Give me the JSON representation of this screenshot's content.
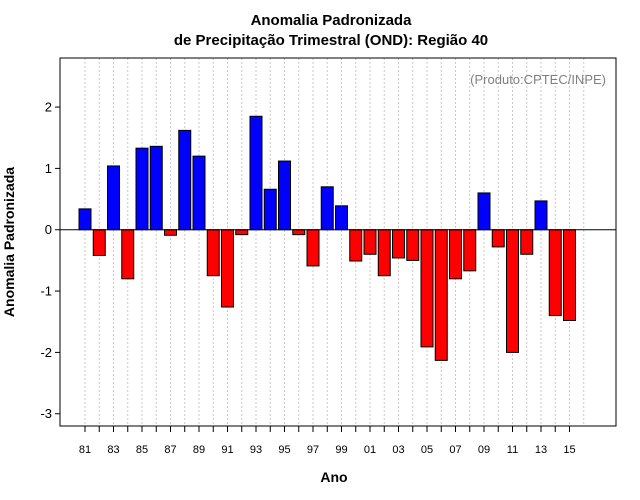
{
  "chart_data": {
    "type": "bar",
    "title": "Anomalia Padronizada",
    "subtitle": "de Precipitação Trimestral (OND): Região 40",
    "xlabel": "Ano",
    "ylabel": "Anomalia Padronizada",
    "credit": "(Produto:CPTEC/INPE)",
    "ylim": [
      -3.2,
      2.8
    ],
    "y_ticks": [
      -3,
      -2,
      -1,
      0,
      1,
      2
    ],
    "years": [
      1981,
      1982,
      1983,
      1984,
      1985,
      1986,
      1987,
      1988,
      1989,
      1990,
      1991,
      1992,
      1993,
      1994,
      1995,
      1996,
      1997,
      1998,
      1999,
      2000,
      2001,
      2002,
      2003,
      2004,
      2005,
      2006,
      2007,
      2008,
      2009,
      2010,
      2011,
      2012,
      2013,
      2014,
      2015
    ],
    "x_tick_labels": [
      "81",
      "83",
      "85",
      "87",
      "89",
      "91",
      "93",
      "95",
      "97",
      "99",
      "01",
      "03",
      "05",
      "07",
      "09",
      "11",
      "13",
      "15"
    ],
    "values": [
      0.34,
      -0.42,
      1.04,
      -0.8,
      1.33,
      1.36,
      -0.09,
      1.62,
      1.2,
      -0.75,
      -1.26,
      -0.08,
      1.85,
      0.66,
      1.12,
      -0.08,
      -0.59,
      0.7,
      0.39,
      -0.51,
      -0.4,
      -0.75,
      -0.46,
      -0.5,
      -1.91,
      -2.13,
      -0.8,
      -0.67,
      0.6,
      -0.28,
      -2.0,
      -0.4,
      0.47,
      -1.4,
      -1.48
    ],
    "grid": true,
    "colors": {
      "positive": "#0000ff",
      "negative": "#ff0000",
      "grid": "#c8c8c8"
    }
  }
}
